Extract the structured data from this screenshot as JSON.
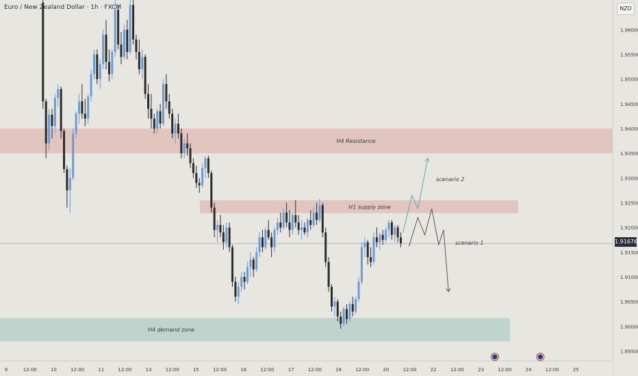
{
  "header": {
    "title": "Euro / New Zealand Dollar · 1h · FXCM",
    "currency": "NZD"
  },
  "last_price": "1.91676",
  "colors": {
    "background": "#e8e6e0",
    "up_candle": "#6a9ad8",
    "down_candle": "#2a2a2a",
    "resistance_zone": "#e3c3bd",
    "supply_zone": "#e3c3bd",
    "demand_zone": "#bcd3ca",
    "scenario_up": "#5fa8ad",
    "scenario_down": "#555555",
    "event_marker": "#1e3f8f"
  },
  "chart_data": {
    "type": "candlestick",
    "title": "Euro / New Zealand Dollar · 1h · FXCM",
    "y_axis": {
      "range": [
        1.893,
        1.966
      ],
      "tick_labels": [
        "1.96000",
        "1.95500",
        "1.95000",
        "1.94500",
        "1.94000",
        "1.93500",
        "1.93000",
        "1.92500",
        "1.92000",
        "1.91500",
        "1.91000",
        "1.90500",
        "1.90000",
        "1.89500"
      ],
      "tick_values": [
        1.96,
        1.955,
        1.95,
        1.945,
        1.94,
        1.935,
        1.93,
        1.925,
        1.92,
        1.915,
        1.91,
        1.905,
        1.9,
        1.895
      ]
    },
    "x_axis": {
      "tick_labels": [
        "9",
        "12:00",
        "10",
        "12:00",
        "11",
        "12:00",
        "13",
        "12:00",
        "15",
        "12:00",
        "16",
        "12:00",
        "17",
        "12:00",
        "18",
        "12:00",
        "20",
        "12:00",
        "22",
        "12:00",
        "23",
        "12:00",
        "24",
        "12:00",
        "25"
      ],
      "tick_hours": [
        0,
        12,
        24,
        36,
        48,
        60,
        72,
        84,
        96,
        108,
        120,
        132,
        144,
        156,
        168,
        180,
        192,
        204,
        216,
        228,
        240,
        252,
        264,
        276,
        288
      ]
    },
    "last_price": 1.91676,
    "zones": [
      {
        "label": "H4 Resistance",
        "from": 1.935,
        "to": 1.94
      },
      {
        "label": "H1 supply zone",
        "from": 1.9229,
        "to": 1.9255
      },
      {
        "label": "H4 demand zone",
        "from": 1.897,
        "to": 1.9017
      }
    ],
    "scenarios": [
      {
        "label": "scenario 2",
        "path_hours": [
          193,
          197.5,
          200.5,
          205.5
        ],
        "path_prices": [
          1.919,
          1.9265,
          1.9238,
          1.934
        ]
      },
      {
        "label": "scenario 1",
        "path_hours": [
          196,
          200.5,
          204,
          207.5,
          211,
          213.5,
          216
        ],
        "path_prices": [
          1.9162,
          1.922,
          1.9185,
          1.9238,
          1.9165,
          1.9195,
          1.907
        ]
      }
    ],
    "event_markers_hours": [
      247,
      270
    ],
    "candles": [
      {
        "o": 1.9655,
        "h": 1.9662,
        "l": 1.944,
        "c": 1.9455
      },
      {
        "o": 1.9455,
        "h": 1.946,
        "l": 1.934,
        "c": 1.937
      },
      {
        "o": 1.937,
        "h": 1.944,
        "l": 1.9355,
        "c": 1.9428
      },
      {
        "o": 1.9428,
        "h": 1.944,
        "l": 1.938,
        "c": 1.9405
      },
      {
        "o": 1.9405,
        "h": 1.947,
        "l": 1.939,
        "c": 1.9462
      },
      {
        "o": 1.9462,
        "h": 1.949,
        "l": 1.9445,
        "c": 1.948
      },
      {
        "o": 1.948,
        "h": 1.9485,
        "l": 1.938,
        "c": 1.9395
      },
      {
        "o": 1.9395,
        "h": 1.94,
        "l": 1.931,
        "c": 1.9318
      },
      {
        "o": 1.9318,
        "h": 1.9325,
        "l": 1.924,
        "c": 1.9275
      },
      {
        "o": 1.9275,
        "h": 1.932,
        "l": 1.923,
        "c": 1.93
      },
      {
        "o": 1.93,
        "h": 1.94,
        "l": 1.9295,
        "c": 1.939
      },
      {
        "o": 1.939,
        "h": 1.9435,
        "l": 1.938,
        "c": 1.943
      },
      {
        "o": 1.943,
        "h": 1.947,
        "l": 1.941,
        "c": 1.9455
      },
      {
        "o": 1.9455,
        "h": 1.949,
        "l": 1.942,
        "c": 1.943
      },
      {
        "o": 1.943,
        "h": 1.946,
        "l": 1.9405,
        "c": 1.942
      },
      {
        "o": 1.942,
        "h": 1.947,
        "l": 1.941,
        "c": 1.9465
      },
      {
        "o": 1.9465,
        "h": 1.952,
        "l": 1.9455,
        "c": 1.951
      },
      {
        "o": 1.951,
        "h": 1.956,
        "l": 1.95,
        "c": 1.955
      },
      {
        "o": 1.955,
        "h": 1.956,
        "l": 1.949,
        "c": 1.95
      },
      {
        "o": 1.95,
        "h": 1.954,
        "l": 1.948,
        "c": 1.953
      },
      {
        "o": 1.953,
        "h": 1.96,
        "l": 1.952,
        "c": 1.959
      },
      {
        "o": 1.959,
        "h": 1.962,
        "l": 1.952,
        "c": 1.9535
      },
      {
        "o": 1.9535,
        "h": 1.956,
        "l": 1.9495,
        "c": 1.951
      },
      {
        "o": 1.951,
        "h": 1.956,
        "l": 1.95,
        "c": 1.9555
      },
      {
        "o": 1.9555,
        "h": 1.966,
        "l": 1.9545,
        "c": 1.964
      },
      {
        "o": 1.964,
        "h": 1.965,
        "l": 1.956,
        "c": 1.957
      },
      {
        "o": 1.957,
        "h": 1.9595,
        "l": 1.953,
        "c": 1.9545
      },
      {
        "o": 1.9545,
        "h": 1.961,
        "l": 1.954,
        "c": 1.96
      },
      {
        "o": 1.96,
        "h": 1.962,
        "l": 1.954,
        "c": 1.9555
      },
      {
        "o": 1.9555,
        "h": 1.966,
        "l": 1.955,
        "c": 1.965
      },
      {
        "o": 1.965,
        "h": 1.9665,
        "l": 1.957,
        "c": 1.958
      },
      {
        "o": 1.958,
        "h": 1.959,
        "l": 1.954,
        "c": 1.9555
      },
      {
        "o": 1.9555,
        "h": 1.958,
        "l": 1.951,
        "c": 1.952
      },
      {
        "o": 1.952,
        "h": 1.956,
        "l": 1.95,
        "c": 1.9545
      },
      {
        "o": 1.9545,
        "h": 1.955,
        "l": 1.946,
        "c": 1.947
      },
      {
        "o": 1.947,
        "h": 1.949,
        "l": 1.942,
        "c": 1.944
      },
      {
        "o": 1.944,
        "h": 1.947,
        "l": 1.94,
        "c": 1.942
      },
      {
        "o": 1.942,
        "h": 1.943,
        "l": 1.939,
        "c": 1.94
      },
      {
        "o": 1.94,
        "h": 1.944,
        "l": 1.939,
        "c": 1.9435
      },
      {
        "o": 1.9435,
        "h": 1.945,
        "l": 1.94,
        "c": 1.941
      },
      {
        "o": 1.941,
        "h": 1.95,
        "l": 1.9405,
        "c": 1.949
      },
      {
        "o": 1.949,
        "h": 1.951,
        "l": 1.944,
        "c": 1.9455
      },
      {
        "o": 1.9455,
        "h": 1.947,
        "l": 1.942,
        "c": 1.943
      },
      {
        "o": 1.943,
        "h": 1.944,
        "l": 1.938,
        "c": 1.939
      },
      {
        "o": 1.939,
        "h": 1.942,
        "l": 1.937,
        "c": 1.941
      },
      {
        "o": 1.941,
        "h": 1.943,
        "l": 1.938,
        "c": 1.939
      },
      {
        "o": 1.939,
        "h": 1.94,
        "l": 1.934,
        "c": 1.935
      },
      {
        "o": 1.935,
        "h": 1.938,
        "l": 1.934,
        "c": 1.937
      },
      {
        "o": 1.937,
        "h": 1.939,
        "l": 1.9345,
        "c": 1.936
      },
      {
        "o": 1.936,
        "h": 1.937,
        "l": 1.932,
        "c": 1.933
      },
      {
        "o": 1.933,
        "h": 1.934,
        "l": 1.93,
        "c": 1.931
      },
      {
        "o": 1.931,
        "h": 1.9325,
        "l": 1.928,
        "c": 1.929
      },
      {
        "o": 1.929,
        "h": 1.93,
        "l": 1.927,
        "c": 1.9285
      },
      {
        "o": 1.9285,
        "h": 1.933,
        "l": 1.928,
        "c": 1.932
      },
      {
        "o": 1.932,
        "h": 1.9345,
        "l": 1.93,
        "c": 1.934
      },
      {
        "o": 1.934,
        "h": 1.9345,
        "l": 1.93,
        "c": 1.931
      },
      {
        "o": 1.931,
        "h": 1.9315,
        "l": 1.923,
        "c": 1.924
      },
      {
        "o": 1.924,
        "h": 1.925,
        "l": 1.918,
        "c": 1.9195
      },
      {
        "o": 1.9195,
        "h": 1.9215,
        "l": 1.917,
        "c": 1.9205
      },
      {
        "o": 1.9205,
        "h": 1.9225,
        "l": 1.918,
        "c": 1.919
      },
      {
        "o": 1.919,
        "h": 1.9205,
        "l": 1.9155,
        "c": 1.917
      },
      {
        "o": 1.917,
        "h": 1.921,
        "l": 1.916,
        "c": 1.92
      },
      {
        "o": 1.92,
        "h": 1.921,
        "l": 1.915,
        "c": 1.916
      },
      {
        "o": 1.916,
        "h": 1.9165,
        "l": 1.908,
        "c": 1.909
      },
      {
        "o": 1.909,
        "h": 1.91,
        "l": 1.905,
        "c": 1.906
      },
      {
        "o": 1.906,
        "h": 1.909,
        "l": 1.9045,
        "c": 1.908
      },
      {
        "o": 1.908,
        "h": 1.911,
        "l": 1.907,
        "c": 1.91
      },
      {
        "o": 1.91,
        "h": 1.911,
        "l": 1.9075,
        "c": 1.909
      },
      {
        "o": 1.909,
        "h": 1.913,
        "l": 1.9085,
        "c": 1.912
      },
      {
        "o": 1.912,
        "h": 1.915,
        "l": 1.91,
        "c": 1.9135
      },
      {
        "o": 1.9135,
        "h": 1.914,
        "l": 1.91,
        "c": 1.9115
      },
      {
        "o": 1.9115,
        "h": 1.916,
        "l": 1.911,
        "c": 1.915
      },
      {
        "o": 1.915,
        "h": 1.919,
        "l": 1.914,
        "c": 1.918
      },
      {
        "o": 1.918,
        "h": 1.9195,
        "l": 1.915,
        "c": 1.916
      },
      {
        "o": 1.916,
        "h": 1.92,
        "l": 1.9155,
        "c": 1.9195
      },
      {
        "o": 1.9195,
        "h": 1.9215,
        "l": 1.9175,
        "c": 1.918
      },
      {
        "o": 1.918,
        "h": 1.919,
        "l": 1.914,
        "c": 1.916
      },
      {
        "o": 1.916,
        "h": 1.92,
        "l": 1.915,
        "c": 1.9195
      },
      {
        "o": 1.9195,
        "h": 1.922,
        "l": 1.9185,
        "c": 1.921
      },
      {
        "o": 1.921,
        "h": 1.923,
        "l": 1.919,
        "c": 1.92
      },
      {
        "o": 1.92,
        "h": 1.924,
        "l": 1.9195,
        "c": 1.923
      },
      {
        "o": 1.923,
        "h": 1.925,
        "l": 1.92,
        "c": 1.921
      },
      {
        "o": 1.921,
        "h": 1.9235,
        "l": 1.918,
        "c": 1.9195
      },
      {
        "o": 1.9195,
        "h": 1.923,
        "l": 1.9185,
        "c": 1.9225
      },
      {
        "o": 1.9225,
        "h": 1.9255,
        "l": 1.92,
        "c": 1.921
      },
      {
        "o": 1.921,
        "h": 1.9225,
        "l": 1.9185,
        "c": 1.9195
      },
      {
        "o": 1.9195,
        "h": 1.9215,
        "l": 1.9175,
        "c": 1.92
      },
      {
        "o": 1.92,
        "h": 1.921,
        "l": 1.9185,
        "c": 1.919
      },
      {
        "o": 1.919,
        "h": 1.922,
        "l": 1.918,
        "c": 1.9215
      },
      {
        "o": 1.9215,
        "h": 1.9235,
        "l": 1.9195,
        "c": 1.9205
      },
      {
        "o": 1.9205,
        "h": 1.924,
        "l": 1.92,
        "c": 1.923
      },
      {
        "o": 1.923,
        "h": 1.925,
        "l": 1.9205,
        "c": 1.9215
      },
      {
        "o": 1.9215,
        "h": 1.9258,
        "l": 1.921,
        "c": 1.9245
      },
      {
        "o": 1.9245,
        "h": 1.925,
        "l": 1.918,
        "c": 1.919
      },
      {
        "o": 1.919,
        "h": 1.92,
        "l": 1.912,
        "c": 1.913
      },
      {
        "o": 1.913,
        "h": 1.914,
        "l": 1.907,
        "c": 1.908
      },
      {
        "o": 1.908,
        "h": 1.9085,
        "l": 1.903,
        "c": 1.904
      },
      {
        "o": 1.904,
        "h": 1.906,
        "l": 1.902,
        "c": 1.905
      },
      {
        "o": 1.905,
        "h": 1.9055,
        "l": 1.901,
        "c": 1.902
      },
      {
        "o": 1.902,
        "h": 1.903,
        "l": 1.8995,
        "c": 1.9005
      },
      {
        "o": 1.9005,
        "h": 1.904,
        "l": 1.9,
        "c": 1.9035
      },
      {
        "o": 1.9035,
        "h": 1.9045,
        "l": 1.9005,
        "c": 1.9015
      },
      {
        "o": 1.9015,
        "h": 1.905,
        "l": 1.901,
        "c": 1.9045
      },
      {
        "o": 1.9045,
        "h": 1.906,
        "l": 1.902,
        "c": 1.903
      },
      {
        "o": 1.903,
        "h": 1.906,
        "l": 1.9025,
        "c": 1.9055
      },
      {
        "o": 1.9055,
        "h": 1.91,
        "l": 1.905,
        "c": 1.909
      },
      {
        "o": 1.909,
        "h": 1.917,
        "l": 1.9085,
        "c": 1.916
      },
      {
        "o": 1.916,
        "h": 1.918,
        "l": 1.914,
        "c": 1.917
      },
      {
        "o": 1.917,
        "h": 1.9175,
        "l": 1.9125,
        "c": 1.914
      },
      {
        "o": 1.914,
        "h": 1.916,
        "l": 1.912,
        "c": 1.913
      },
      {
        "o": 1.913,
        "h": 1.919,
        "l": 1.9125,
        "c": 1.918
      },
      {
        "o": 1.918,
        "h": 1.92,
        "l": 1.916,
        "c": 1.917
      },
      {
        "o": 1.917,
        "h": 1.919,
        "l": 1.9155,
        "c": 1.9185
      },
      {
        "o": 1.9185,
        "h": 1.9195,
        "l": 1.9165,
        "c": 1.9175
      },
      {
        "o": 1.9175,
        "h": 1.92,
        "l": 1.917,
        "c": 1.9195
      },
      {
        "o": 1.9195,
        "h": 1.9215,
        "l": 1.918,
        "c": 1.921
      },
      {
        "o": 1.921,
        "h": 1.9215,
        "l": 1.9175,
        "c": 1.9185
      },
      {
        "o": 1.9185,
        "h": 1.9205,
        "l": 1.917,
        "c": 1.92
      },
      {
        "o": 1.92,
        "h": 1.9205,
        "l": 1.917,
        "c": 1.918
      },
      {
        "o": 1.918,
        "h": 1.919,
        "l": 1.916,
        "c": 1.9168
      }
    ]
  }
}
